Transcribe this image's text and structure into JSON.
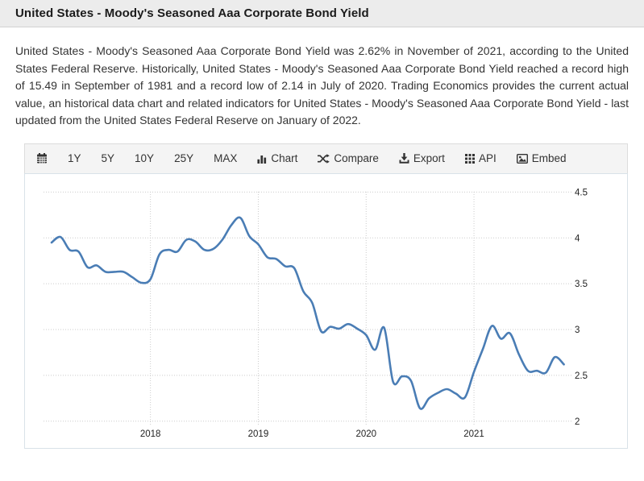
{
  "header": {
    "title": "United States - Moody's Seasoned Aaa Corporate Bond Yield"
  },
  "description": "United States - Moody's Seasoned Aaa Corporate Bond Yield was 2.62% in November of 2021, according to the United States Federal Reserve. Historically, United States - Moody's Seasoned Aaa Corporate Bond Yield reached a record high of 15.49 in September of 1981 and a record low of 2.14 in July of 2020. Trading Economics provides the current actual value, an historical data chart and related indicators for United States - Moody's Seasoned Aaa Corporate Bond Yield - last updated from the United States Federal Reserve on January of 2022.",
  "toolbar": {
    "ranges": [
      "1Y",
      "5Y",
      "10Y",
      "25Y",
      "MAX"
    ],
    "actions": [
      {
        "label": "Chart",
        "icon": "bar-chart-icon"
      },
      {
        "label": "Compare",
        "icon": "shuffle-icon"
      },
      {
        "label": "Export",
        "icon": "download-icon"
      },
      {
        "label": "API",
        "icon": "grid-dots-icon"
      },
      {
        "label": "Embed",
        "icon": "image-icon"
      }
    ]
  },
  "chart_data": {
    "type": "line",
    "title": "",
    "xlabel": "",
    "ylabel": "",
    "ylim": [
      2,
      4.5
    ],
    "y_ticks": [
      4.5,
      4,
      3.5,
      3,
      2.5,
      2
    ],
    "x_tick_labels": [
      "2018",
      "2019",
      "2020",
      "2021"
    ],
    "yaxis_position": "right",
    "grid": "dotted",
    "line_color": "#4a7db5",
    "grid_color": "#cccccc",
    "tick_label_color": "#222222",
    "series": [
      {
        "name": "Moody's Seasoned Aaa Corporate Bond Yield",
        "frequency": "monthly",
        "start": "2017-02",
        "end": "2021-11",
        "values": [
          3.95,
          4.01,
          3.87,
          3.85,
          3.68,
          3.7,
          3.63,
          3.63,
          3.63,
          3.57,
          3.51,
          3.55,
          3.82,
          3.87,
          3.85,
          3.98,
          3.96,
          3.87,
          3.88,
          3.98,
          4.14,
          4.22,
          4.02,
          3.93,
          3.79,
          3.77,
          3.69,
          3.67,
          3.42,
          3.29,
          2.98,
          3.03,
          3.01,
          3.06,
          3.01,
          2.94,
          2.78,
          3.02,
          2.43,
          2.49,
          2.44,
          2.14,
          2.25,
          2.31,
          2.35,
          2.3,
          2.26,
          2.54,
          2.79,
          3.04,
          2.9,
          2.96,
          2.73,
          2.55,
          2.55,
          2.53,
          2.7,
          2.62
        ]
      }
    ]
  }
}
